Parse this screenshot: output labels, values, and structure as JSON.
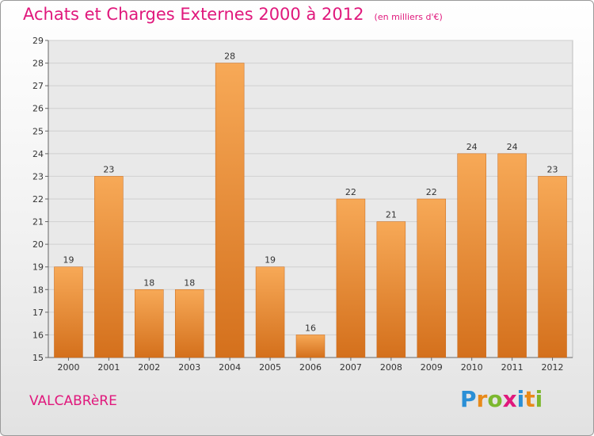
{
  "header": {
    "title": "Achats et Charges Externes 2000 à 2012",
    "unit": "(en milliers d'€)"
  },
  "footer": {
    "commune": "VALCABRèRE",
    "logo": [
      "P",
      "r",
      "o",
      "x",
      "i",
      "t",
      "i"
    ],
    "logo_colors": [
      "#2a8fd6",
      "#e88a1a",
      "#7cb82f",
      "#e0187c",
      "#2a8fd6",
      "#e88a1a",
      "#7cb82f"
    ]
  },
  "colors": {
    "accent": "#e0187c",
    "bar_light": "#f7a957",
    "bar_dark": "#d4701c",
    "grid": "#d0d0d0",
    "plot_bg": "#e9e9e9"
  },
  "chart_data": {
    "type": "bar",
    "categories": [
      "2000",
      "2001",
      "2002",
      "2003",
      "2004",
      "2005",
      "2006",
      "2007",
      "2008",
      "2009",
      "2010",
      "2011",
      "2012"
    ],
    "values": [
      19,
      23,
      18,
      18,
      28,
      19,
      16,
      22,
      21,
      22,
      24,
      24,
      23
    ],
    "title": "Achats et Charges Externes 2000 à 2012",
    "xlabel": "",
    "ylabel": "",
    "ylim": [
      15,
      29
    ],
    "yticks": [
      15,
      16,
      17,
      18,
      19,
      20,
      21,
      22,
      23,
      24,
      25,
      26,
      27,
      28,
      29
    ],
    "grid": true,
    "legend": "none",
    "data_labels": true
  }
}
